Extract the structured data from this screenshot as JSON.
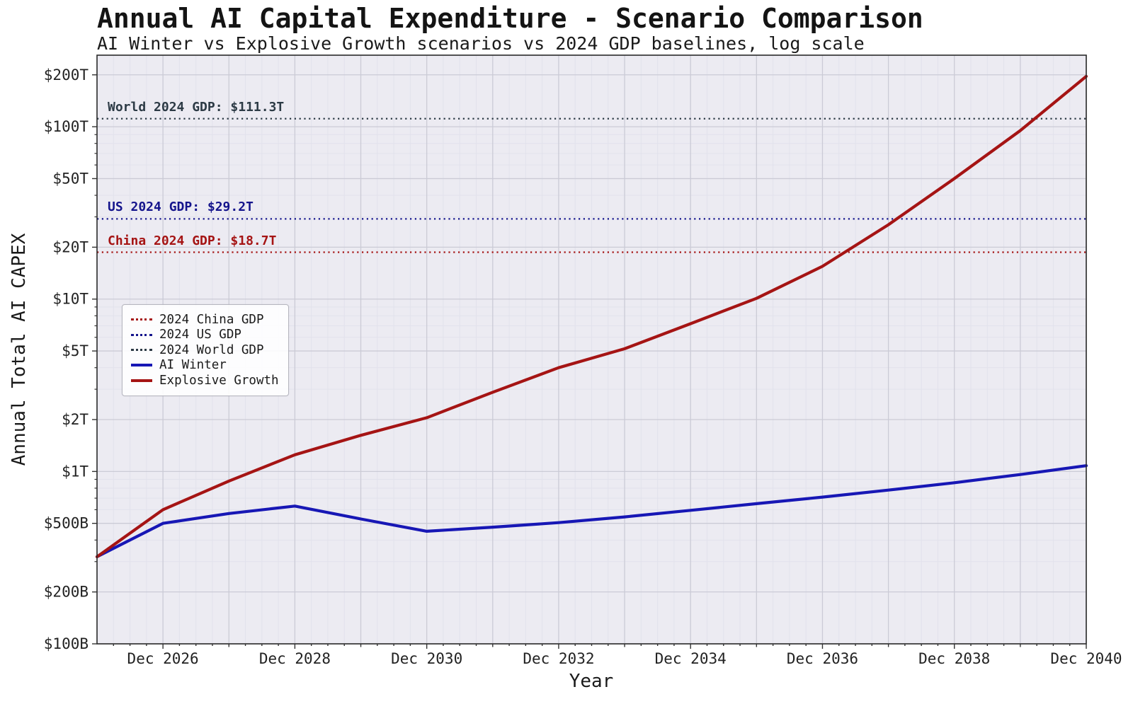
{
  "title": "Annual AI Capital Expenditure - Scenario Comparison",
  "subtitle": "AI Winter vs Explosive Growth scenarios vs 2024 GDP baselines, log scale",
  "chart_data": {
    "type": "line",
    "title": "Annual AI Capital Expenditure - Scenario Comparison",
    "subtitle": "AI Winter vs Explosive Growth scenarios vs 2024 GDP baselines, log scale",
    "xlabel": "Year",
    "ylabel": "Annual Total AI CAPEX",
    "yscale": "log",
    "units": "USD billions",
    "ylim_usd_billions": [
      100,
      260000
    ],
    "grid": true,
    "years": [
      2025,
      2026,
      2027,
      2028,
      2029,
      2030,
      2031,
      2032,
      2033,
      2034,
      2035,
      2036,
      2037,
      2038,
      2039,
      2040
    ],
    "x_tick_years": [
      2026,
      2028,
      2030,
      2032,
      2034,
      2036,
      2038,
      2040
    ],
    "x_tick_labels": [
      "Dec 2026",
      "Dec 2028",
      "Dec 2030",
      "Dec 2032",
      "Dec 2034",
      "Dec 2036",
      "Dec 2038",
      "Dec 2040"
    ],
    "y_tick_values_billions": [
      100,
      200,
      500,
      1000,
      2000,
      5000,
      10000,
      20000,
      50000,
      100000,
      200000
    ],
    "y_tick_labels": [
      "$100B",
      "$200B",
      "$500B",
      "$1T",
      "$2T",
      "$5T",
      "$10T",
      "$20T",
      "$50T",
      "$100T",
      "$200T"
    ],
    "series": [
      {
        "name": "AI Winter",
        "color": "#1717b5",
        "style": "solid",
        "values_usd_billions": [
          320,
          500,
          570,
          630,
          530,
          450,
          475,
          505,
          545,
          595,
          650,
          710,
          780,
          860,
          960,
          1080
        ]
      },
      {
        "name": "Explosive Growth",
        "color": "#a51414",
        "style": "solid",
        "values_usd_billions": [
          320,
          600,
          880,
          1250,
          1620,
          2050,
          2880,
          4000,
          5150,
          7200,
          10100,
          15500,
          27000,
          50000,
          95000,
          196000
        ]
      }
    ],
    "baselines": [
      {
        "name": "2024 World GDP",
        "annotation": "World 2024 GDP: $111.3T",
        "value_usd_billions": 111300,
        "color": "#2c3a45",
        "style": "dotted"
      },
      {
        "name": "2024 US GDP",
        "annotation": "US 2024 GDP: $29.2T",
        "value_usd_billions": 29200,
        "color": "#14148c",
        "style": "dotted"
      },
      {
        "name": "2024 China GDP",
        "annotation": "China 2024 GDP: $18.7T",
        "value_usd_billions": 18700,
        "color": "#a51414",
        "style": "dotted"
      }
    ],
    "legend_items": [
      {
        "label": "2024 China GDP",
        "line": "dotted",
        "color": "#a51414"
      },
      {
        "label": "2024 US GDP",
        "line": "dotted",
        "color": "#14148c"
      },
      {
        "label": "2024 World GDP",
        "line": "dotted",
        "color": "#2c3a45"
      },
      {
        "label": "AI Winter",
        "line": "solid",
        "color": "#1717b5"
      },
      {
        "label": "Explosive Growth",
        "line": "solid",
        "color": "#a51414"
      }
    ],
    "legend_position": "upper-left-inside",
    "colors": {
      "axes_background": "#ecebf2",
      "figure_background": "#ffffff",
      "grid_major": "#cbcbd6",
      "grid_minor": "#e2e2ec",
      "spine": "#2a2a2a"
    }
  }
}
